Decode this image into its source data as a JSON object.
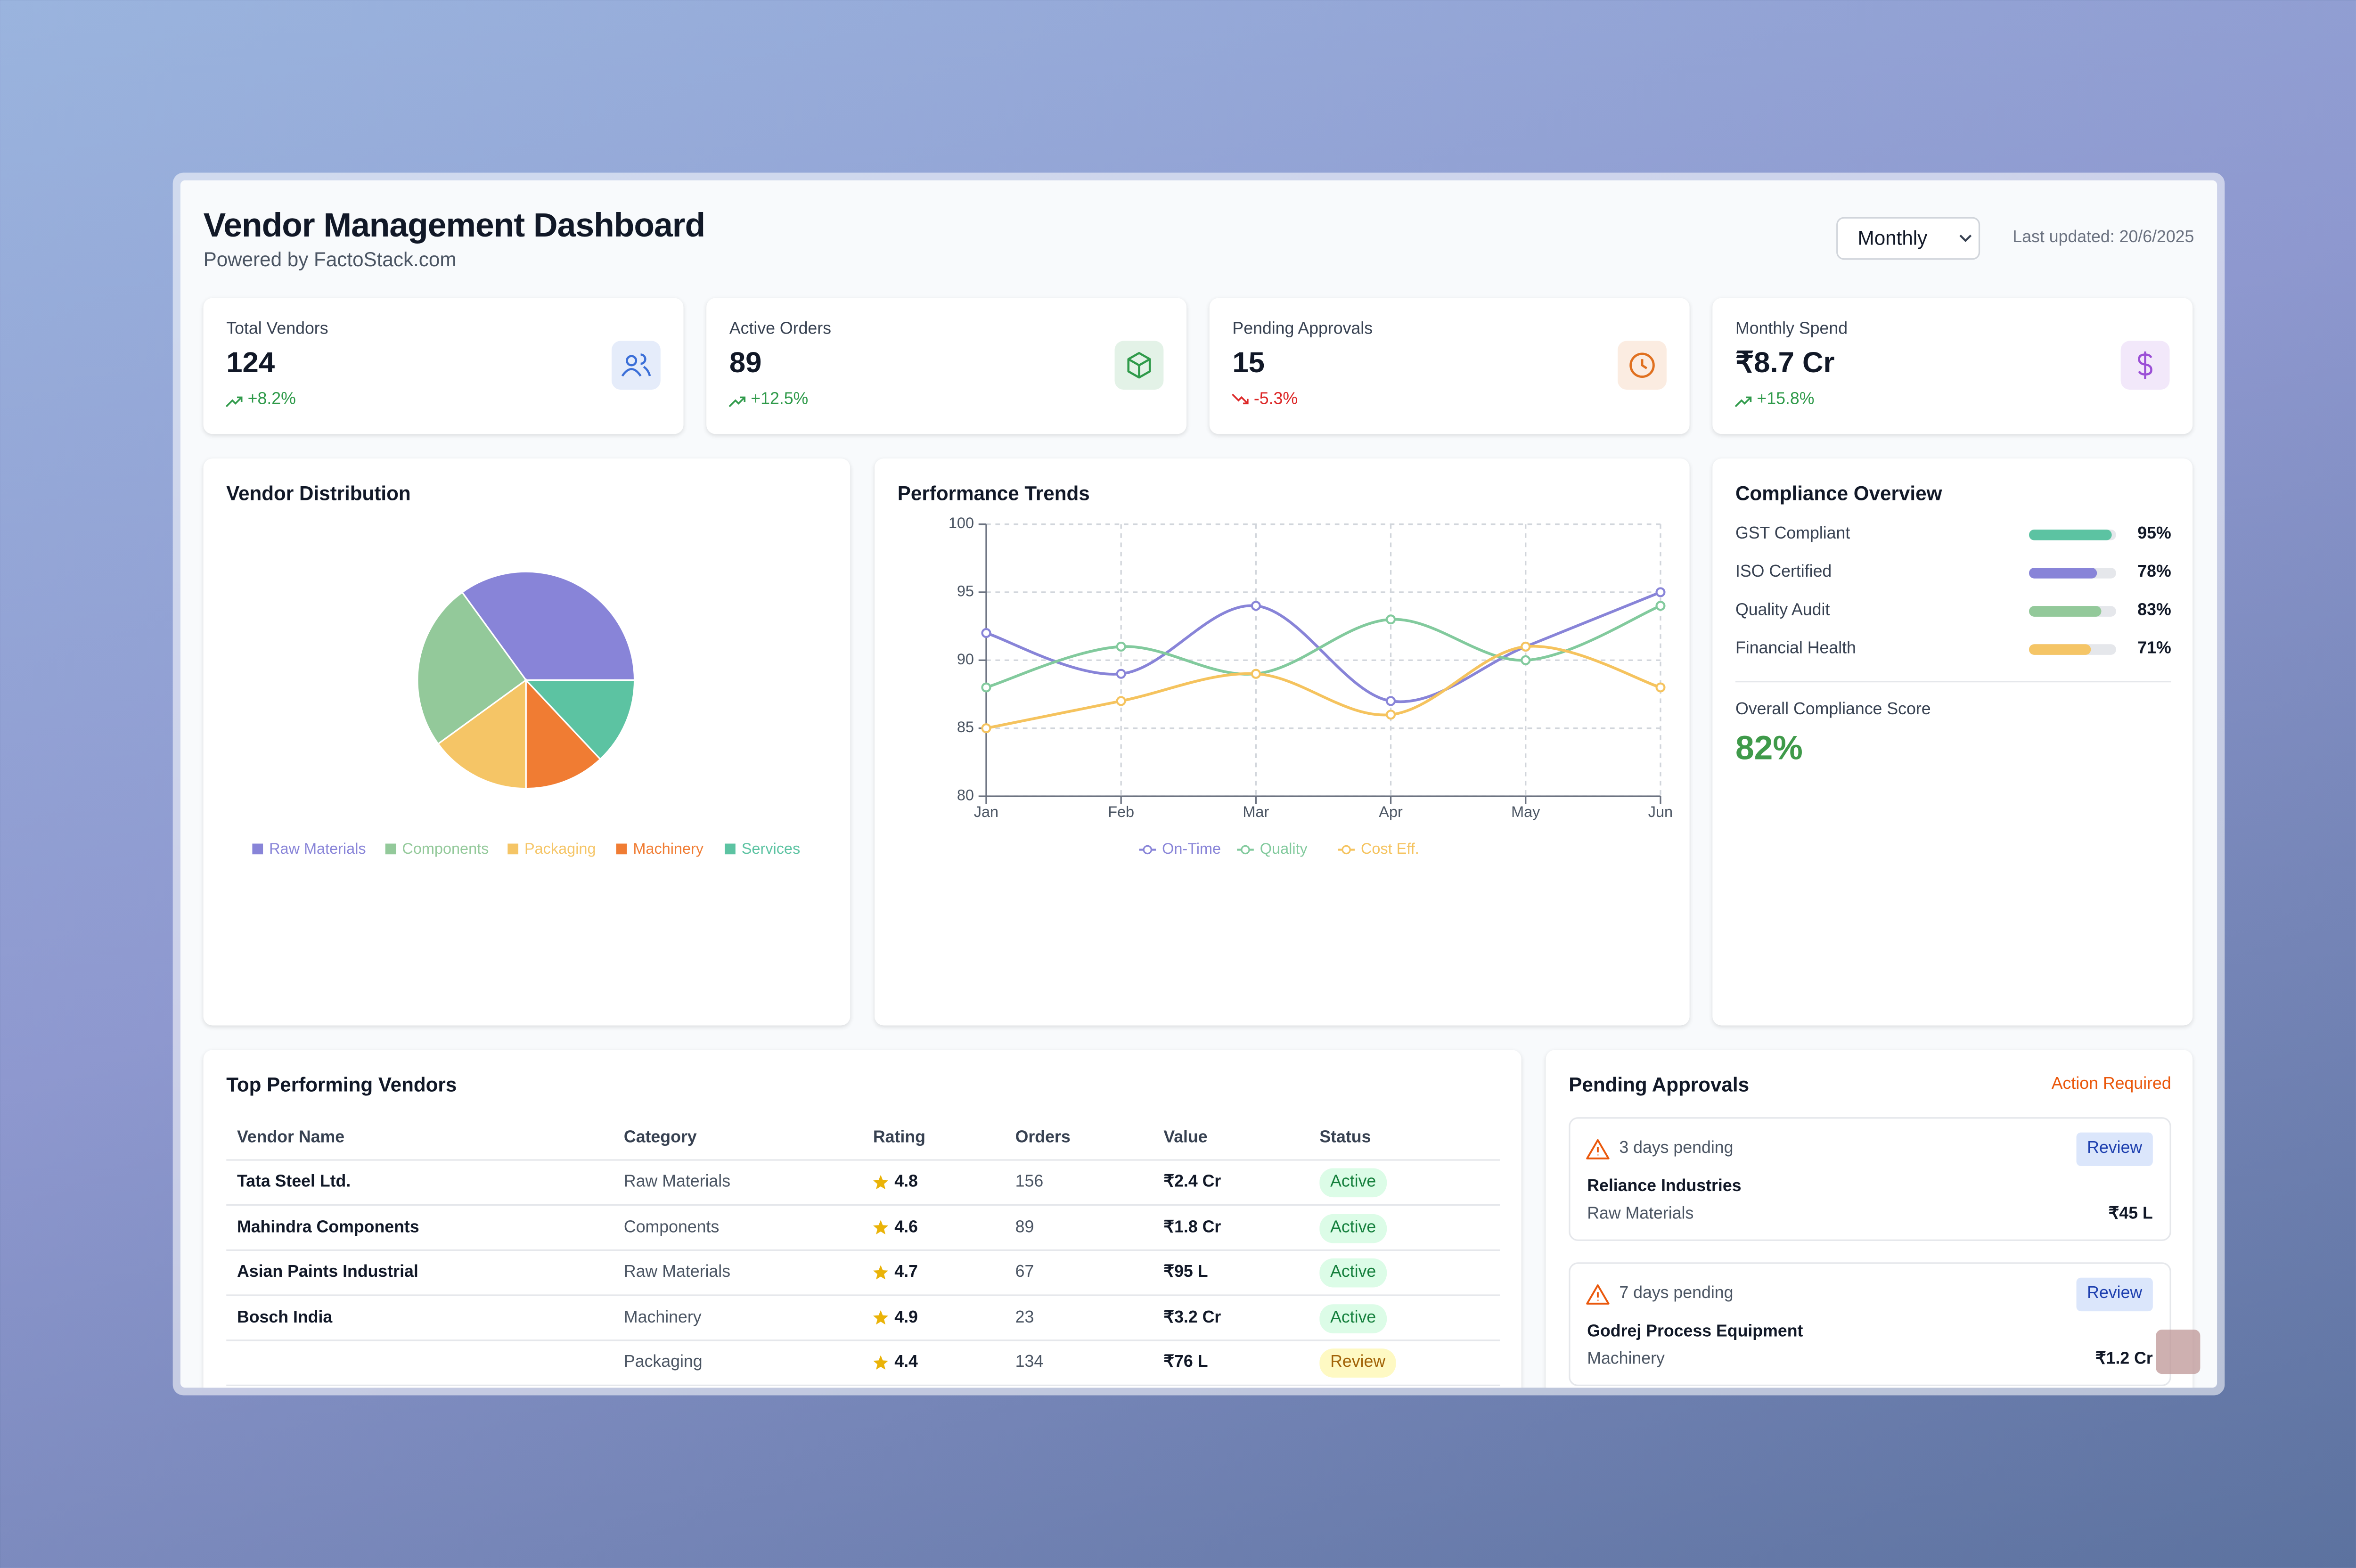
{
  "header": {
    "title": "Vendor Management Dashboard",
    "subtitle": "Powered by FactoStack.com",
    "period": "Monthly",
    "last_updated": "Last updated: 20/6/2025"
  },
  "kpis": [
    {
      "label": "Total Vendors",
      "value": "124",
      "change": "+8.2%",
      "trend": "up",
      "color": "#3b6fd8"
    },
    {
      "label": "Active Orders",
      "value": "89",
      "change": "+12.5%",
      "trend": "up",
      "color": "#2f9a4a"
    },
    {
      "label": "Pending Approvals",
      "value": "15",
      "change": "-5.3%",
      "trend": "down",
      "color": "#e0701f"
    },
    {
      "label": "Monthly Spend",
      "value": "₹8.7 Cr",
      "change": "+15.8%",
      "trend": "up",
      "color": "#9b4fd6"
    }
  ],
  "chart_data": [
    {
      "type": "pie",
      "title": "Vendor Distribution",
      "categories": [
        "Raw Materials",
        "Components",
        "Packaging",
        "Machinery",
        "Services"
      ],
      "values": [
        35,
        25,
        15,
        12,
        13
      ],
      "colors": [
        "#8884d8",
        "#93c99a",
        "#f5c566",
        "#f07c33",
        "#5cc3a2"
      ],
      "legend": "bottom"
    },
    {
      "type": "line",
      "title": "Performance Trends",
      "categories": [
        "Jan",
        "Feb",
        "Mar",
        "Apr",
        "May",
        "Jun"
      ],
      "series": [
        {
          "name": "On-Time",
          "color": "#8884d8",
          "values": [
            92,
            89,
            94,
            87,
            91,
            95
          ]
        },
        {
          "name": "Quality",
          "color": "#82ca9d",
          "values": [
            88,
            91,
            89,
            93,
            90,
            94
          ]
        },
        {
          "name": "Cost Eff.",
          "color": "#f5c35e",
          "values": [
            85,
            87,
            89,
            86,
            91,
            88
          ]
        }
      ],
      "ylim": [
        80,
        100
      ],
      "yticks": [
        80,
        85,
        90,
        95,
        100
      ],
      "grid": true,
      "legend": "bottom"
    }
  ],
  "compliance": {
    "title": "Compliance Overview",
    "items": [
      {
        "label": "GST Compliant",
        "value": 95,
        "value_label": "95%",
        "color": "#5cc3a2"
      },
      {
        "label": "ISO Certified",
        "value": 78,
        "value_label": "78%",
        "color": "#8884d8"
      },
      {
        "label": "Quality Audit",
        "value": 83,
        "value_label": "83%",
        "color": "#93c99a"
      },
      {
        "label": "Financial Health",
        "value": 71,
        "value_label": "71%",
        "color": "#f5c566"
      }
    ],
    "score_label": "Overall Compliance Score",
    "score": "82%"
  },
  "table": {
    "title": "Top Performing Vendors",
    "columns": [
      "Vendor Name",
      "Category",
      "Rating",
      "Orders",
      "Value",
      "Status"
    ],
    "rows": [
      [
        "Tata Steel Ltd.",
        "Raw Materials",
        "4.8",
        "156",
        "₹2.4 Cr",
        "Active"
      ],
      [
        "Mahindra Components",
        "Components",
        "4.6",
        "89",
        "₹1.8 Cr",
        "Active"
      ],
      [
        "Asian Paints Industrial",
        "Raw Materials",
        "4.7",
        "67",
        "₹95 L",
        "Active"
      ],
      [
        "Bosch India",
        "Machinery",
        "4.9",
        "23",
        "₹3.2 Cr",
        "Active"
      ],
      [
        null,
        "Packaging",
        "4.4",
        "134",
        "₹76 L",
        "Review"
      ]
    ]
  },
  "approvals": {
    "title": "Pending Approvals",
    "badge": "Action Required",
    "items": [
      {
        "pending": "3 days pending",
        "action": "Review",
        "name": "Reliance Industries",
        "category": "Raw Materials",
        "amount": "₹45 L"
      },
      {
        "pending": "7 days pending",
        "action": "Review",
        "name": "Godrej Process Equipment",
        "category": "Machinery",
        "amount": "₹1.2 Cr"
      }
    ]
  }
}
